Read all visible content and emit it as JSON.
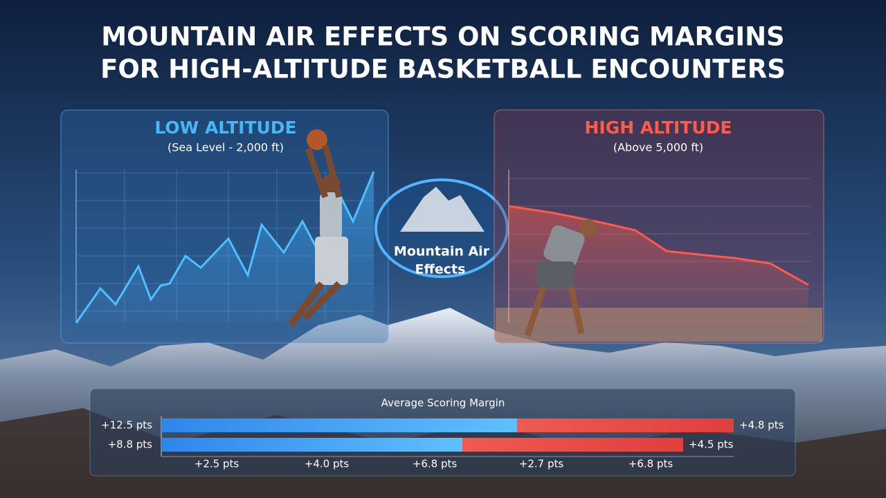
{
  "title": [
    "MOUNTAIN AIR EFFECTS ON SCORING MARGINS",
    "FOR HIGH-ALTITUDE BASKETBALL ENCOUNTERS"
  ],
  "panels": [
    {
      "title": "LOW ALTITUDE",
      "subtitle": "(Sea Level - 2,000 ft)"
    },
    {
      "title": "HIGH ALTITUDE",
      "subtitle": "(Above 5,000 ft)"
    }
  ],
  "badge": [
    "Mountain Air",
    "Effects"
  ],
  "margin_chart": {
    "title": "Average Scoring Margin",
    "rows": [
      {
        "left": "+12.5 pts",
        "right": "+4.8 pts"
      },
      {
        "left": "+8.8 pts",
        "right": "+4.5 pts"
      }
    ],
    "axis_labels": [
      "+2.5 pts",
      "+4.0 pts",
      "+6.8 pts",
      "+2.7 pts",
      "+6.8 pts"
    ]
  }
}
